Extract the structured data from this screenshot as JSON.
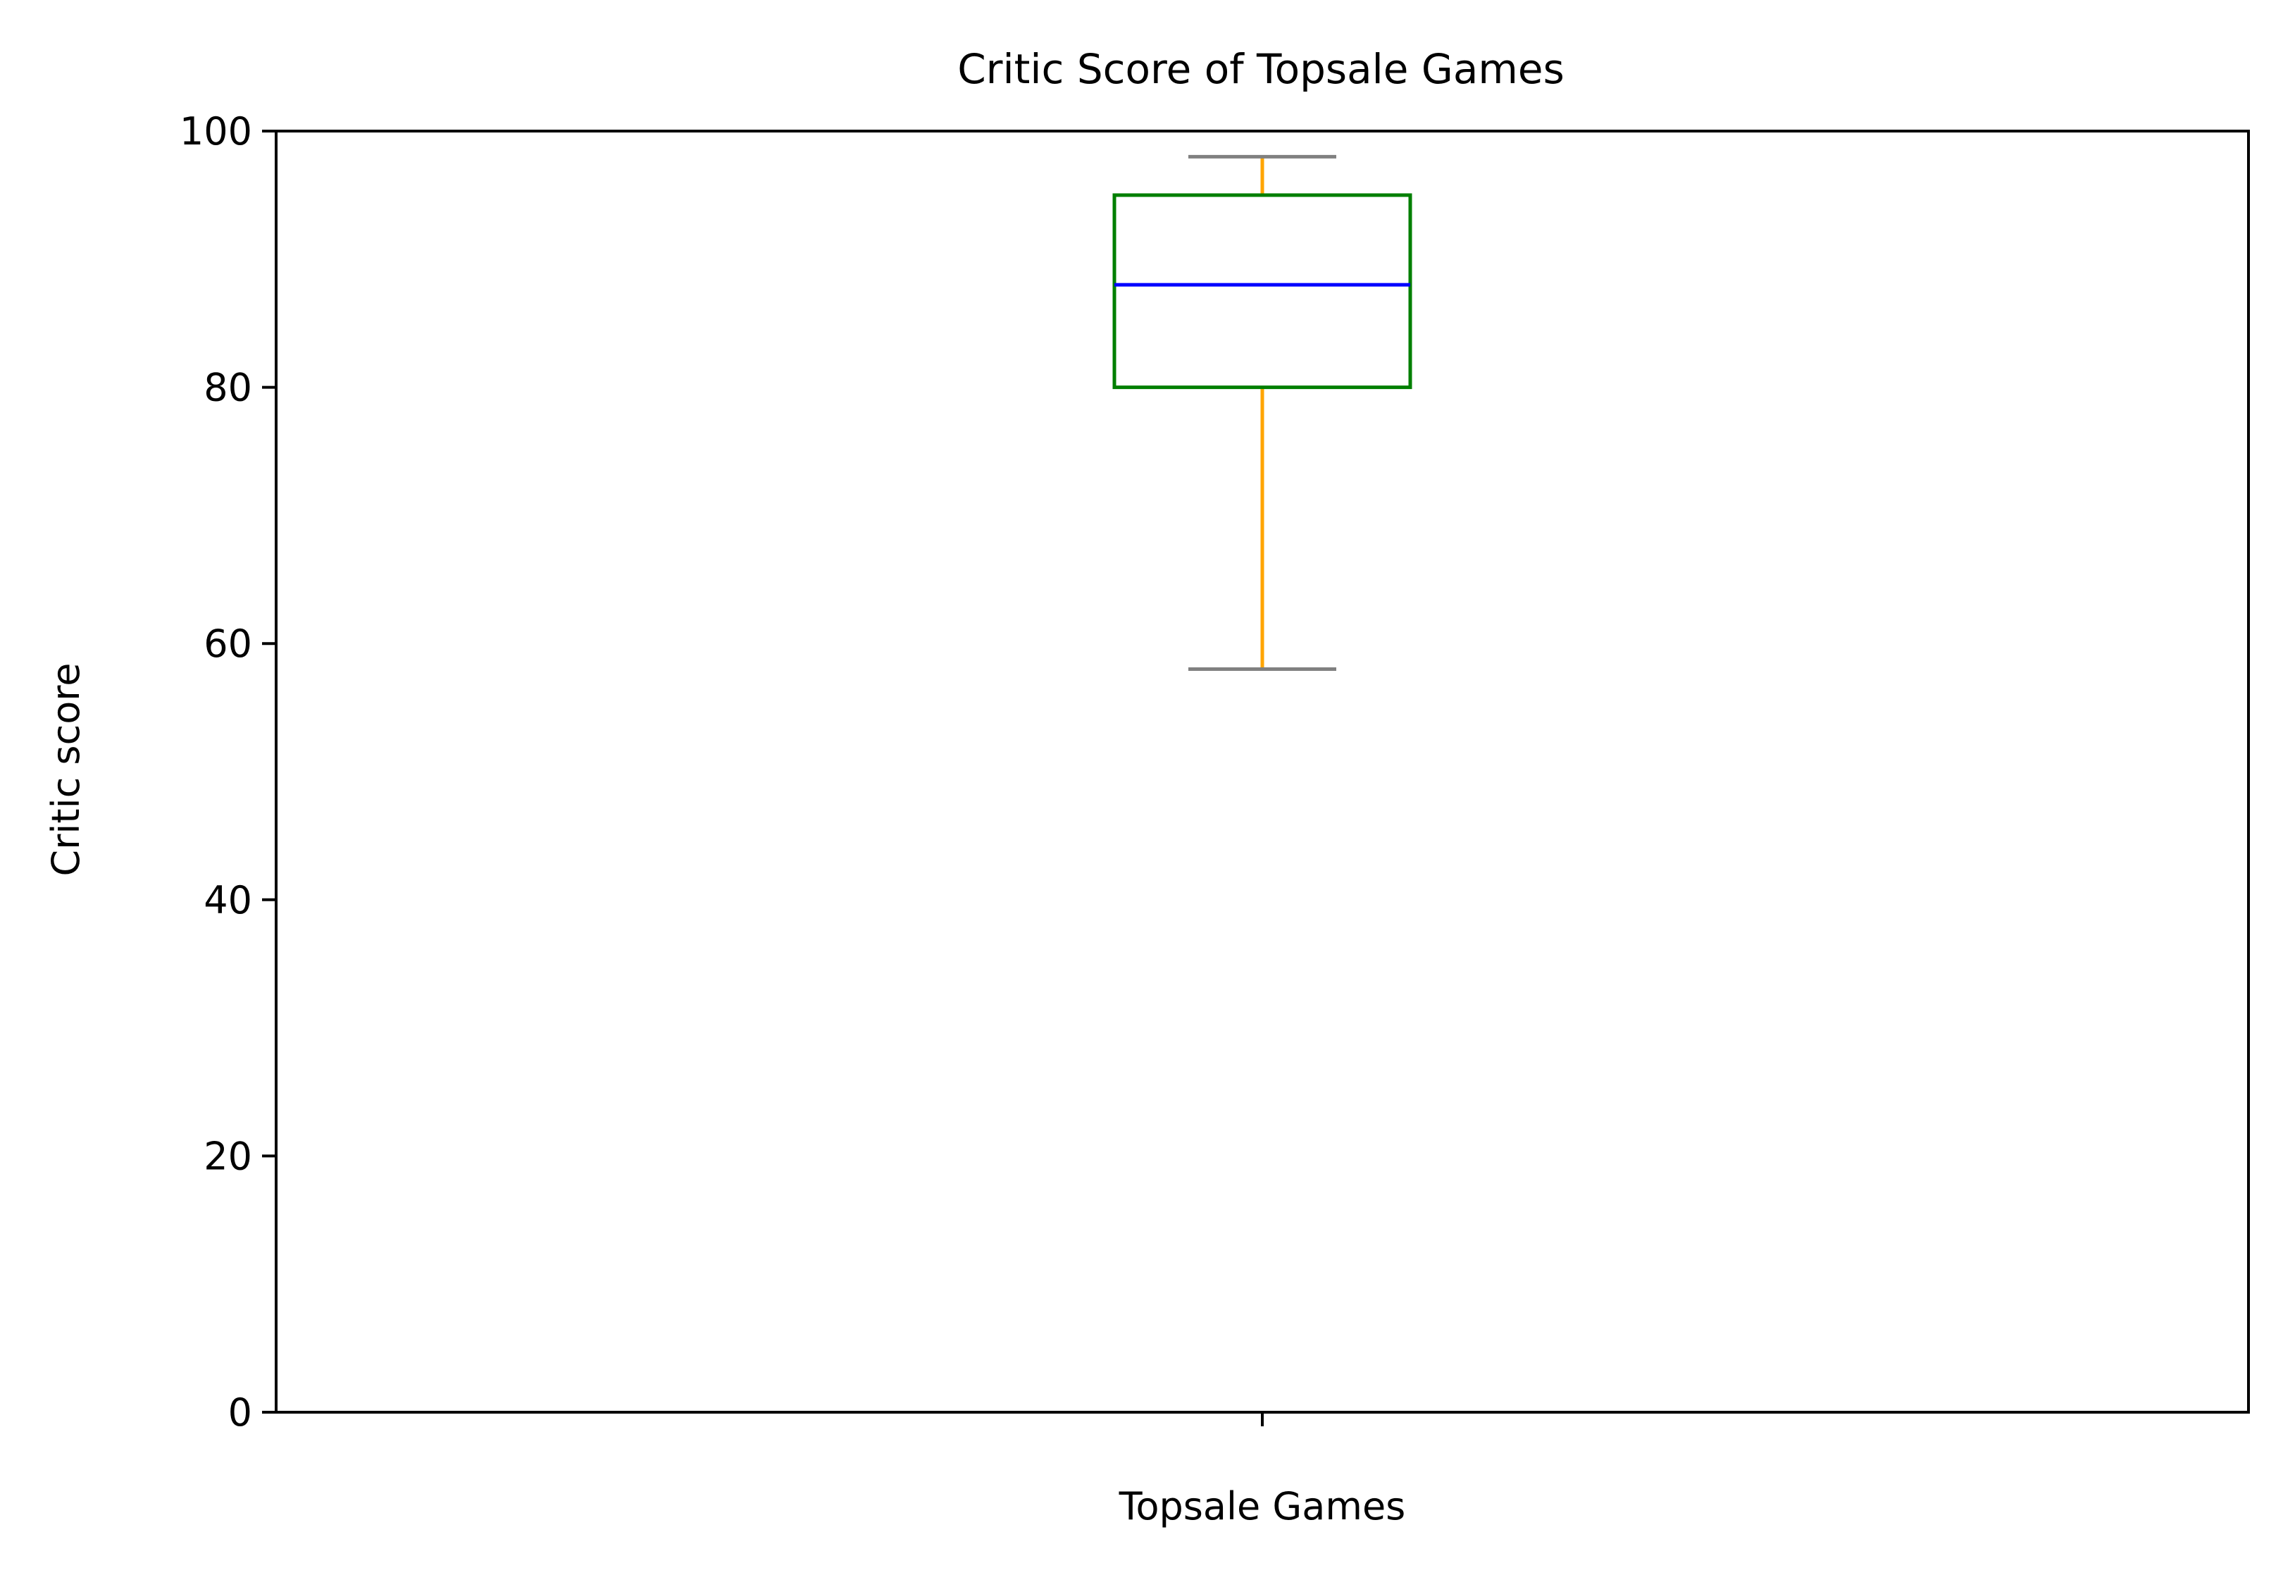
{
  "chart_data": {
    "type": "box",
    "title": "Critic Score of Topsale Games",
    "xlabel": "",
    "ylabel": "Critic score",
    "categories": [
      "Topsale Games"
    ],
    "series": [
      {
        "whisker_low": 58,
        "q1": 80,
        "median": 88,
        "q3": 95,
        "whisker_high": 98
      }
    ],
    "ylim": [
      0,
      100
    ],
    "yticks": [
      0,
      20,
      40,
      60,
      80,
      100
    ],
    "grid": false,
    "legend": "none",
    "colors": {
      "box": "#007f00",
      "median": "#0000ff",
      "whisker": "#ffa500",
      "cap": "#808080",
      "axes": "#000000"
    }
  }
}
